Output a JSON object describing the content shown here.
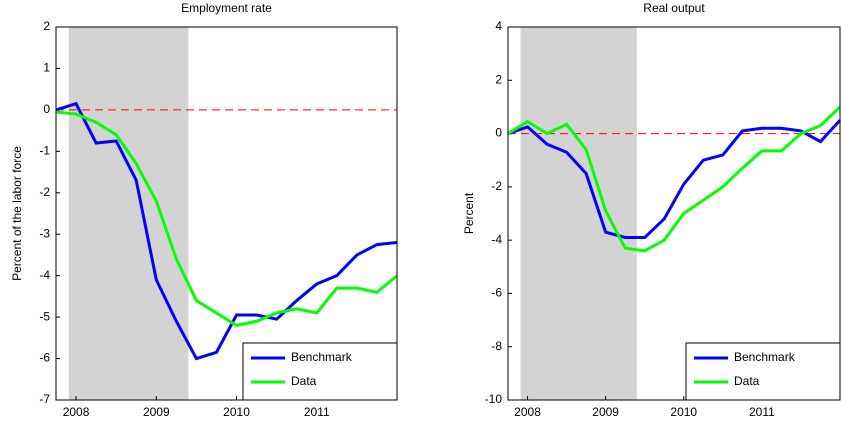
{
  "chart_data": [
    {
      "type": "line",
      "title": "Employment rate",
      "ylabel": "Percent of the labor force",
      "x": [
        2007.75,
        2008.0,
        2008.25,
        2008.5,
        2008.75,
        2009.0,
        2009.25,
        2009.5,
        2009.75,
        2010.0,
        2010.25,
        2010.5,
        2010.75,
        2011.0,
        2011.25,
        2011.5,
        2011.75,
        2012.0
      ],
      "xlim": [
        2007.75,
        2012.0
      ],
      "xticks": [
        2008,
        2009,
        2010,
        2011
      ],
      "ylim": [
        -7,
        2
      ],
      "yticks": [
        -7,
        -6,
        -5,
        -4,
        -3,
        -2,
        -1,
        0,
        1,
        2
      ],
      "shade": [
        2007.91,
        2009.4
      ],
      "shade_color": "#d3d3d3",
      "hline": 0,
      "hline_color": "#ff0000",
      "legend": "lower right",
      "series": [
        {
          "name": "Benchmark",
          "color": "#0000ff",
          "values": [
            0,
            0.15,
            -0.8,
            -0.75,
            -1.7,
            -4.1,
            -5.1,
            -6.0,
            -5.85,
            -4.95,
            -4.95,
            -5.05,
            -4.6,
            -4.2,
            -4.0,
            -3.5,
            -3.25,
            -3.2
          ]
        },
        {
          "name": "Data",
          "color": "#00ff00",
          "values": [
            -0.05,
            -0.1,
            -0.3,
            -0.6,
            -1.3,
            -2.2,
            -3.6,
            -4.6,
            -4.9,
            -5.2,
            -5.1,
            -4.9,
            -4.8,
            -4.9,
            -4.3,
            -4.3,
            -4.4,
            -4.0
          ]
        }
      ]
    },
    {
      "type": "line",
      "title": "Real output",
      "ylabel": "Percent",
      "x": [
        2007.75,
        2008.0,
        2008.25,
        2008.5,
        2008.75,
        2009.0,
        2009.25,
        2009.5,
        2009.75,
        2010.0,
        2010.25,
        2010.5,
        2010.75,
        2011.0,
        2011.25,
        2011.5,
        2011.75,
        2012.0
      ],
      "xlim": [
        2007.75,
        2012.0
      ],
      "xticks": [
        2008,
        2009,
        2010,
        2011
      ],
      "ylim": [
        -10,
        4
      ],
      "yticks": [
        -10,
        -8,
        -6,
        -4,
        -2,
        0,
        2,
        4
      ],
      "shade": [
        2007.91,
        2009.4
      ],
      "shade_color": "#d3d3d3",
      "hline": 0,
      "hline_color": "#ff0000",
      "legend": "lower right",
      "series": [
        {
          "name": "Benchmark",
          "color": "#0000ff",
          "values": [
            0,
            0.25,
            -0.4,
            -0.7,
            -1.5,
            -3.7,
            -3.9,
            -3.9,
            -3.2,
            -1.9,
            -1.0,
            -0.8,
            0.1,
            0.2,
            0.2,
            0.1,
            -0.3,
            0.5
          ]
        },
        {
          "name": "Data",
          "color": "#00ff00",
          "values": [
            0,
            0.45,
            0.0,
            0.35,
            -0.6,
            -2.9,
            -4.3,
            -4.4,
            -4.0,
            -3.0,
            -2.5,
            -2.0,
            -1.3,
            -0.65,
            -0.65,
            0.0,
            0.3,
            1.0
          ]
        }
      ]
    }
  ]
}
